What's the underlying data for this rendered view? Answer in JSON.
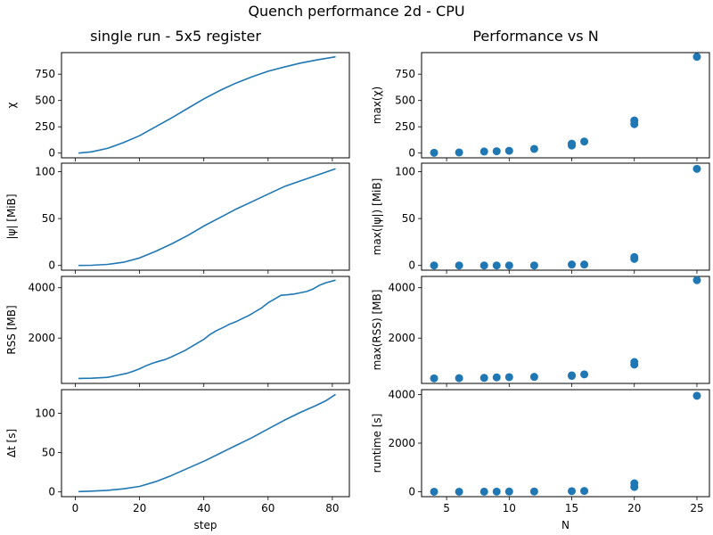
{
  "figure": {
    "title": "Quench performance 2d - CPU",
    "left_column_title": "single run - 5x5 register",
    "right_column_title": "Performance vs N"
  },
  "colors": {
    "series": "#1f77b4",
    "axes": "#000000",
    "background": "#ffffff"
  },
  "chart_data": [
    {
      "id": "chi-vs-step",
      "type": "line",
      "column": "left",
      "row": 0,
      "ylabel": "χ",
      "xlabel": "",
      "xlim": [
        -4.3,
        85.3
      ],
      "ylim": [
        -45,
        955
      ],
      "xticks": [
        0,
        20,
        40,
        60,
        80
      ],
      "show_xticklabels": false,
      "yticks": [
        0,
        250,
        500,
        750
      ],
      "yticklabels": [
        "0",
        "250",
        "500",
        "750"
      ],
      "x": [
        1,
        5,
        10,
        15,
        20,
        25,
        30,
        35,
        40,
        45,
        50,
        55,
        60,
        65,
        70,
        75,
        81
      ],
      "y": [
        0,
        12,
        45,
        100,
        165,
        250,
        335,
        425,
        515,
        595,
        665,
        725,
        778,
        818,
        855,
        885,
        915
      ]
    },
    {
      "id": "psi-vs-step",
      "type": "line",
      "column": "left",
      "row": 1,
      "ylabel": "|ψ| [MiB]",
      "xlabel": "",
      "xlim": [
        -4.3,
        85.3
      ],
      "ylim": [
        -5,
        109
      ],
      "xticks": [
        0,
        20,
        40,
        60,
        80
      ],
      "show_xticklabels": false,
      "yticks": [
        0,
        50,
        100
      ],
      "yticklabels": [
        "0",
        "50",
        "100"
      ],
      "x": [
        1,
        5,
        10,
        15,
        20,
        25,
        30,
        35,
        40,
        45,
        50,
        55,
        60,
        65,
        70,
        75,
        81
      ],
      "y": [
        0,
        0.2,
        1.2,
        3.5,
        8,
        15,
        23,
        32,
        42,
        51,
        60,
        68,
        76,
        84,
        90,
        96,
        103
      ]
    },
    {
      "id": "rss-vs-step",
      "type": "line",
      "column": "left",
      "row": 2,
      "ylabel": "RSS [MB]",
      "xlabel": "",
      "xlim": [
        -4.3,
        85.3
      ],
      "ylim": [
        200,
        4450
      ],
      "xticks": [
        0,
        20,
        40,
        60,
        80
      ],
      "show_xticklabels": false,
      "yticks": [
        2000,
        4000
      ],
      "yticklabels": [
        "2000",
        "4000"
      ],
      "x": [
        1,
        5,
        10,
        13,
        16,
        18,
        20,
        22,
        24,
        26,
        28,
        30,
        32,
        34,
        36,
        38,
        40,
        42,
        44,
        46,
        48,
        50,
        52,
        54,
        56,
        58,
        60,
        62,
        64,
        66,
        68,
        70,
        72,
        74,
        76,
        78,
        81
      ],
      "y": [
        400,
        405,
        440,
        520,
        600,
        680,
        780,
        900,
        1000,
        1080,
        1150,
        1260,
        1380,
        1500,
        1650,
        1800,
        1950,
        2150,
        2300,
        2420,
        2550,
        2650,
        2780,
        2900,
        3050,
        3200,
        3400,
        3550,
        3700,
        3720,
        3750,
        3800,
        3850,
        3950,
        4100,
        4200,
        4300
      ]
    },
    {
      "id": "dt-vs-step",
      "type": "line",
      "column": "left",
      "row": 3,
      "ylabel": "Δt [s]",
      "xlabel": "step",
      "xlim": [
        -4.3,
        85.3
      ],
      "ylim": [
        -6,
        130
      ],
      "xticks": [
        0,
        20,
        40,
        60,
        80
      ],
      "show_xticklabels": true,
      "xticklabels": [
        "0",
        "20",
        "40",
        "60",
        "80"
      ],
      "yticks": [
        0,
        50,
        100
      ],
      "yticklabels": [
        "0",
        "50",
        "100"
      ],
      "x": [
        1,
        5,
        10,
        15,
        20,
        25,
        30,
        35,
        40,
        45,
        50,
        55,
        60,
        65,
        70,
        75,
        78,
        81
      ],
      "y": [
        0.5,
        1,
        2,
        4,
        7,
        13,
        21,
        30,
        39,
        49,
        59,
        69,
        80,
        91,
        101,
        110,
        116,
        124
      ]
    },
    {
      "id": "maxchi-vs-N",
      "type": "scatter",
      "column": "right",
      "row": 0,
      "ylabel": "max(χ)",
      "xlabel": "",
      "xlim": [
        3.0,
        26.0
      ],
      "ylim": [
        -45,
        955
      ],
      "xticks": [
        5,
        10,
        15,
        20,
        25
      ],
      "show_xticklabels": false,
      "yticks": [
        0,
        250,
        500,
        750
      ],
      "yticklabels": [
        "0",
        "250",
        "500",
        "750"
      ],
      "x": [
        4,
        6,
        8,
        9,
        10,
        12,
        15,
        15,
        16,
        20,
        20,
        25
      ],
      "y": [
        3,
        6,
        15,
        18,
        22,
        40,
        72,
        90,
        110,
        275,
        310,
        915
      ]
    },
    {
      "id": "maxpsi-vs-N",
      "type": "scatter",
      "column": "right",
      "row": 1,
      "ylabel": "max(|ψ|) [MiB]",
      "xlabel": "",
      "xlim": [
        3.0,
        26.0
      ],
      "ylim": [
        -5,
        109
      ],
      "xticks": [
        5,
        10,
        15,
        20,
        25
      ],
      "show_xticklabels": false,
      "yticks": [
        0,
        50,
        100
      ],
      "yticklabels": [
        "0",
        "50",
        "100"
      ],
      "x": [
        4,
        6,
        8,
        9,
        10,
        12,
        15,
        16,
        20,
        20,
        25
      ],
      "y": [
        0,
        0,
        0,
        0,
        0,
        0,
        1,
        1,
        7,
        9,
        103
      ]
    },
    {
      "id": "maxrss-vs-N",
      "type": "scatter",
      "column": "right",
      "row": 2,
      "ylabel": "max(RSS) [MB]",
      "xlabel": "",
      "xlim": [
        3.0,
        26.0
      ],
      "ylim": [
        200,
        4450
      ],
      "xticks": [
        5,
        10,
        15,
        20,
        25
      ],
      "show_xticklabels": false,
      "yticks": [
        2000,
        4000
      ],
      "yticklabels": [
        "2000",
        "4000"
      ],
      "x": [
        4,
        6,
        8,
        9,
        10,
        12,
        15,
        15,
        16,
        20,
        20,
        25
      ],
      "y": [
        400,
        410,
        420,
        440,
        450,
        460,
        500,
        520,
        560,
        950,
        1050,
        4300
      ]
    },
    {
      "id": "runtime-vs-N",
      "type": "scatter",
      "column": "right",
      "row": 3,
      "ylabel": "runtime [s]",
      "xlabel": "N",
      "xlim": [
        3.0,
        26.0
      ],
      "ylim": [
        -200,
        4200
      ],
      "xticks": [
        5,
        10,
        15,
        20,
        25
      ],
      "show_xticklabels": true,
      "xticklabels": [
        "5",
        "10",
        "15",
        "20",
        "25"
      ],
      "yticks": [
        0,
        2000,
        4000
      ],
      "yticklabels": [
        "0",
        "2000",
        "4000"
      ],
      "x": [
        4,
        6,
        8,
        9,
        10,
        12,
        15,
        16,
        20,
        20,
        25
      ],
      "y": [
        2,
        3,
        5,
        7,
        9,
        12,
        25,
        35,
        200,
        350,
        3950
      ]
    }
  ]
}
